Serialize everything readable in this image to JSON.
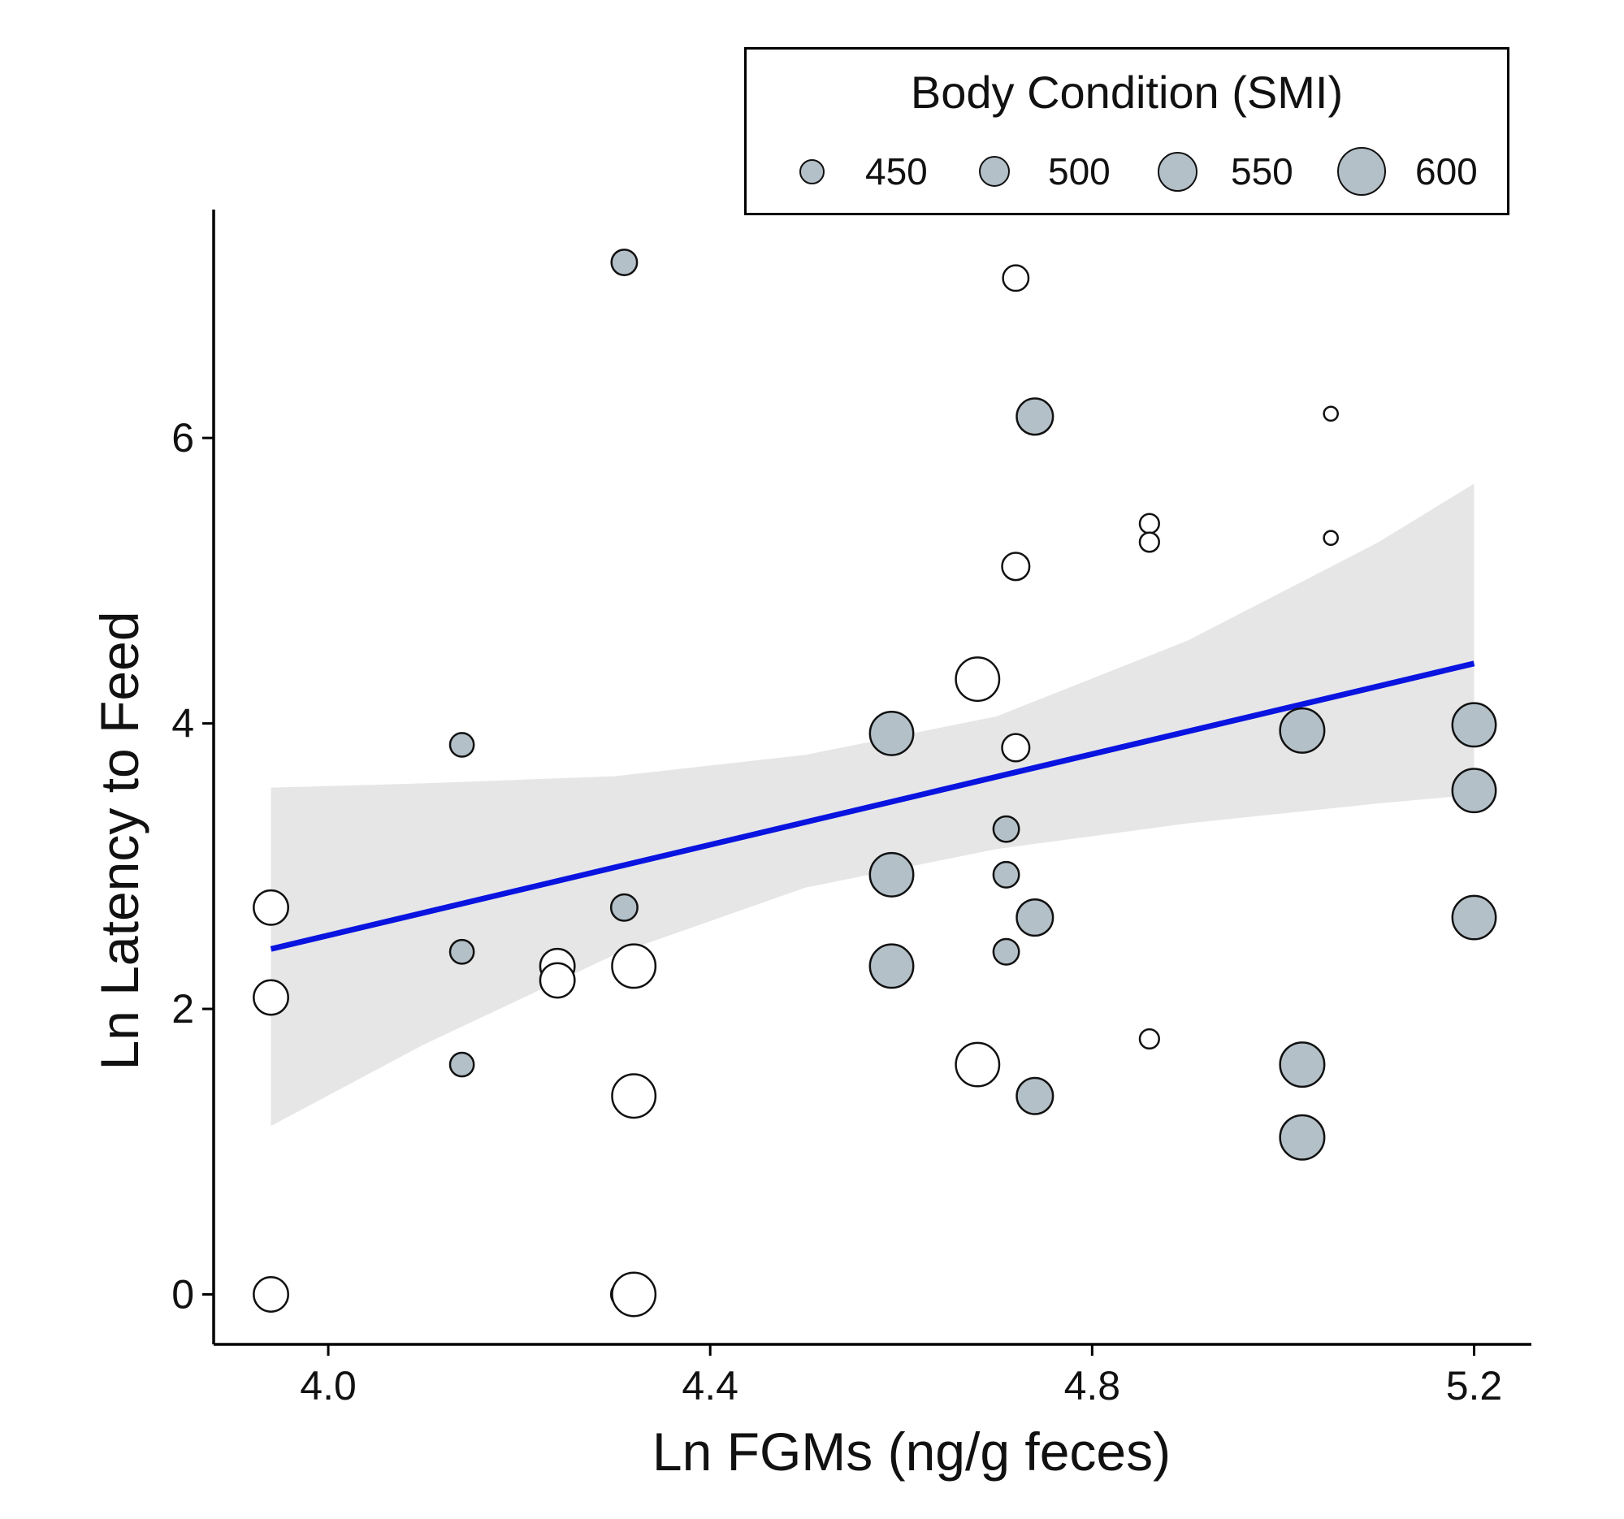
{
  "chart_data": {
    "type": "scatter",
    "xlabel": "Ln FGMs (ng/g feces)",
    "ylabel": "Ln Latency to Feed",
    "xlim": [
      3.88,
      5.26
    ],
    "ylim": [
      -0.35,
      7.6
    ],
    "x_ticks": [
      4.0,
      4.4,
      4.8,
      5.2
    ],
    "x_tick_labels": [
      "4.0",
      "4.4",
      "4.8",
      "5.2"
    ],
    "y_ticks": [
      0,
      2,
      4,
      6
    ],
    "y_tick_labels": [
      "0",
      "2",
      "4",
      "6"
    ],
    "legend": {
      "title": "Body Condition (SMI)",
      "position": "top-right",
      "entries": [
        {
          "label": "450",
          "smi": 450
        },
        {
          "label": "500",
          "smi": 500
        },
        {
          "label": "550",
          "smi": 550
        },
        {
          "label": "600",
          "smi": 600
        }
      ]
    },
    "colors": {
      "group_grey": "#b4c0c8",
      "group_white": "#ffffff",
      "outline": "#111111",
      "fit_line": "#0a14e0",
      "ci_band": "#e6e6e6"
    },
    "fit_line": {
      "x": [
        3.94,
        5.2
      ],
      "y": [
        2.42,
        4.42
      ]
    },
    "confidence_band": {
      "x": [
        3.94,
        4.1,
        4.3,
        4.5,
        4.7,
        4.9,
        5.1,
        5.2
      ],
      "lower": [
        1.18,
        1.75,
        2.38,
        2.85,
        3.12,
        3.3,
        3.44,
        3.5
      ],
      "upper": [
        3.55,
        3.58,
        3.63,
        3.78,
        4.05,
        4.58,
        5.27,
        5.68
      ]
    },
    "series": [
      {
        "name": "grey",
        "color": "#b4c0c8",
        "points": [
          {
            "x": 4.31,
            "y": 7.23,
            "smi": 470
          },
          {
            "x": 4.14,
            "y": 3.85,
            "smi": 460
          },
          {
            "x": 4.14,
            "y": 2.4,
            "smi": 460
          },
          {
            "x": 4.14,
            "y": 1.61,
            "smi": 460
          },
          {
            "x": 4.31,
            "y": 2.71,
            "smi": 475
          },
          {
            "x": 4.31,
            "y": 0.0,
            "smi": 475
          },
          {
            "x": 4.74,
            "y": 6.15,
            "smi": 530
          },
          {
            "x": 4.59,
            "y": 3.93,
            "smi": 570
          },
          {
            "x": 4.59,
            "y": 2.94,
            "smi": 570
          },
          {
            "x": 4.59,
            "y": 2.3,
            "smi": 570
          },
          {
            "x": 4.71,
            "y": 3.26,
            "smi": 470
          },
          {
            "x": 4.71,
            "y": 2.94,
            "smi": 470
          },
          {
            "x": 4.71,
            "y": 2.4,
            "smi": 470
          },
          {
            "x": 4.74,
            "y": 2.64,
            "smi": 530
          },
          {
            "x": 4.74,
            "y": 1.39,
            "smi": 530
          },
          {
            "x": 5.02,
            "y": 3.95,
            "smi": 575
          },
          {
            "x": 5.02,
            "y": 1.61,
            "smi": 575
          },
          {
            "x": 5.02,
            "y": 1.1,
            "smi": 575
          },
          {
            "x": 5.2,
            "y": 3.99,
            "smi": 570
          },
          {
            "x": 5.2,
            "y": 3.53,
            "smi": 570
          },
          {
            "x": 5.2,
            "y": 2.64,
            "smi": 570
          }
        ]
      },
      {
        "name": "white",
        "color": "#ffffff",
        "points": [
          {
            "x": 4.72,
            "y": 7.12,
            "smi": 470
          },
          {
            "x": 5.05,
            "y": 6.17,
            "smi": 405
          },
          {
            "x": 4.86,
            "y": 5.4,
            "smi": 435
          },
          {
            "x": 4.86,
            "y": 5.27,
            "smi": 435
          },
          {
            "x": 5.05,
            "y": 5.3,
            "smi": 405
          },
          {
            "x": 4.72,
            "y": 5.1,
            "smi": 480
          },
          {
            "x": 4.68,
            "y": 4.31,
            "smi": 570
          },
          {
            "x": 4.72,
            "y": 3.83,
            "smi": 480
          },
          {
            "x": 3.94,
            "y": 2.71,
            "smi": 520
          },
          {
            "x": 3.94,
            "y": 2.08,
            "smi": 520
          },
          {
            "x": 3.94,
            "y": 0.0,
            "smi": 520
          },
          {
            "x": 4.24,
            "y": 2.3,
            "smi": 520
          },
          {
            "x": 4.24,
            "y": 2.2,
            "smi": 520
          },
          {
            "x": 4.32,
            "y": 2.3,
            "smi": 570
          },
          {
            "x": 4.32,
            "y": 1.39,
            "smi": 570
          },
          {
            "x": 4.32,
            "y": 0.0,
            "smi": 570
          },
          {
            "x": 4.68,
            "y": 1.61,
            "smi": 570
          },
          {
            "x": 4.86,
            "y": 1.79,
            "smi": 435
          }
        ]
      }
    ]
  }
}
